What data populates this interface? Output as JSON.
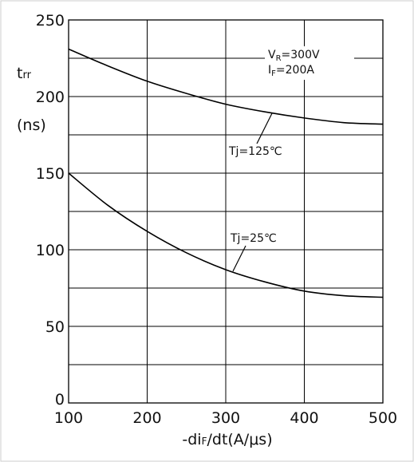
{
  "chart_data": {
    "type": "line",
    "title": "",
    "x_range": [
      100,
      500
    ],
    "y_range": [
      0,
      250
    ],
    "x_ticks": [
      100,
      200,
      300,
      400,
      500
    ],
    "y_ticks": [
      0,
      50,
      100,
      150,
      200,
      250
    ],
    "x_tick_labels": [
      "100",
      "200",
      "300",
      "400",
      "500"
    ],
    "y_tick_labels": [
      "0",
      "50",
      "100",
      "150",
      "200",
      "250"
    ],
    "grid": true,
    "xlabel": {
      "prefix": "-di",
      "sub": "F",
      "suffix": "/dt(A/μs)"
    },
    "ylabel": {
      "main": "t",
      "sub": "rr",
      "unit": "(ns)"
    },
    "conditions": {
      "vr": {
        "main": "V",
        "sub": "R",
        "rest": "=300V"
      },
      "if": {
        "main": "I",
        "sub": "F",
        "rest": "=200A"
      }
    },
    "series": [
      {
        "name": "Tj=125℃",
        "x": [
          100,
          150,
          200,
          250,
          300,
          350,
          400,
          450,
          500
        ],
        "y": [
          231,
          220,
          210,
          202,
          195,
          190,
          186,
          183,
          182
        ]
      },
      {
        "name": "Tj=25℃",
        "x": [
          100,
          150,
          200,
          250,
          300,
          350,
          400,
          450,
          500
        ],
        "y": [
          150,
          129,
          112,
          98,
          87,
          79,
          73,
          70,
          69
        ]
      }
    ]
  }
}
